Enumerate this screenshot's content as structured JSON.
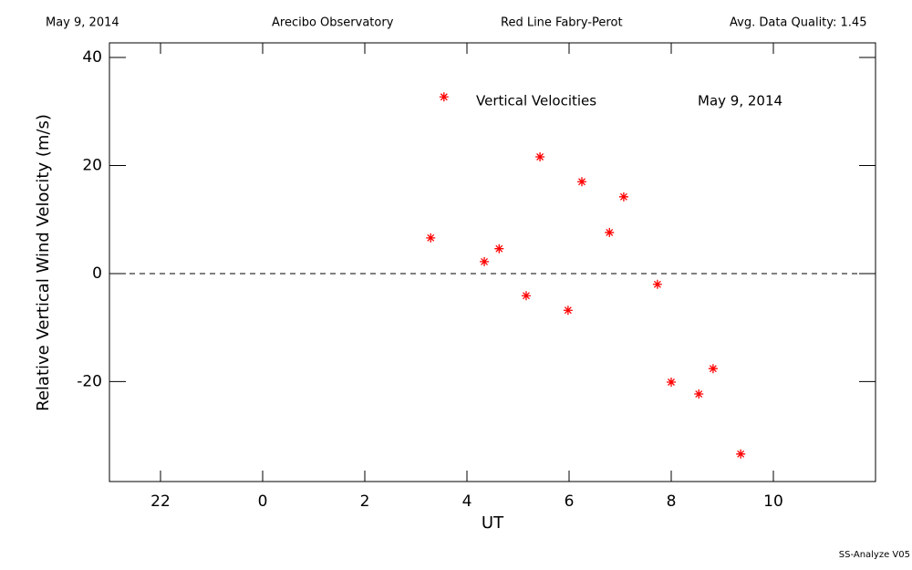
{
  "header": {
    "date": "May 9, 2014",
    "site": "Arecibo Observatory",
    "instrument": "Red Line Fabry-Perot",
    "quality": "Avg. Data Quality: 1.45"
  },
  "footer": "SS-Analyze V05",
  "chart_data": {
    "type": "scatter",
    "annotations": [
      "Vertical Velocities",
      "May 9, 2014"
    ],
    "x_label": "UT",
    "y_label": "Relative Vertical Wind Velocity (m/s)",
    "color": "#ff0000",
    "x": [
      3.29,
      3.55,
      4.34,
      4.63,
      5.16,
      5.43,
      5.98,
      6.25,
      6.79,
      7.07,
      7.73,
      8.0,
      8.54,
      8.82,
      9.36
    ],
    "values": [
      6.6,
      32.7,
      2.2,
      4.6,
      -4.1,
      21.6,
      -6.8,
      17.0,
      7.6,
      14.2,
      -2.0,
      -20.1,
      -22.3,
      -17.6,
      -33.4
    ],
    "xlim": [
      -3,
      12
    ],
    "ylim": [
      -38.5,
      42.7
    ],
    "xticks": [
      {
        "value": -2,
        "label": "22"
      },
      0,
      2,
      4,
      6,
      8,
      10
    ],
    "yticks": [
      -20,
      0,
      20,
      40
    ],
    "reference_line": 0
  }
}
